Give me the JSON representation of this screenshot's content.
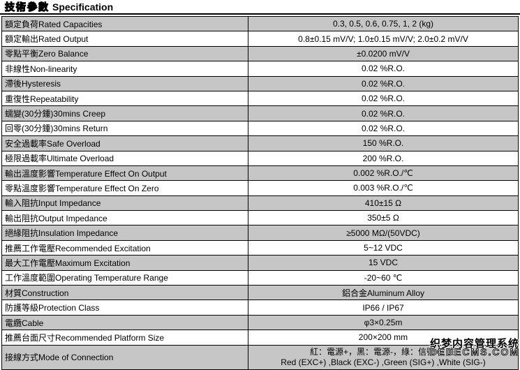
{
  "page": {
    "title_cn": "技術參數",
    "title_en": "Specification"
  },
  "table": {
    "rows": [
      {
        "label": "額定負荷Rated Capacities",
        "value": "0.3, 0.5, 0.6, 0.75, 1, 2 (kg)"
      },
      {
        "label": "額定輸出Rated Output",
        "value": "0.8±0.15 mV/V; 1.0±0.15 mV/V; 2.0±0.2 mV/V"
      },
      {
        "label": "零點平衡Zero Balance",
        "value": "±0.0200 mV/V"
      },
      {
        "label": "非線性Non-linearity",
        "value": "0.02 %R.O."
      },
      {
        "label": "滯後Hysteresis",
        "value": "0.02 %R.O."
      },
      {
        "label": "重復性Repeatability",
        "value": "0.02 %R.O."
      },
      {
        "label": "蠕變(30分鍾)30mins Creep",
        "value": "0.02 %R.O."
      },
      {
        "label": "回零(30分鍾)30mins Return",
        "value": "0.02 %R.O."
      },
      {
        "label": "安全過載率Safe Overload",
        "value": "150 %R.O."
      },
      {
        "label": "極限過載率Ultimate Overload",
        "value": "200 %R.O."
      },
      {
        "label": "輸出溫度影響Temperature Effect On Output",
        "value": "0.002 %R.O./℃"
      },
      {
        "label": "零點溫度影響Temperature Effect On Zero",
        "value": "0.003 %R.O./℃"
      },
      {
        "label": "輸入阻抗Input Impedance",
        "value": "410±15 Ω"
      },
      {
        "label": "輸出阻抗Output Impedance",
        "value": "350±5 Ω"
      },
      {
        "label": "絕緣阻抗Insulation Impedance",
        "value": "≥5000 MΩ/(50VDC)"
      },
      {
        "label": "推薦工作電壓Recommended Excitation",
        "value": "5~12 VDC"
      },
      {
        "label": "最大工作電壓Maximum Excitation",
        "value": "15 VDC"
      },
      {
        "label": "工作溫度範圍Operating Temperature Range",
        "value": "-20~60 ℃"
      },
      {
        "label": "材質Construction",
        "value": "鋁合金Aluminum Alloy"
      },
      {
        "label": "防護等級Protection Class",
        "value": "IP66 / IP67"
      },
      {
        "label": "電纜Cable",
        "value": "φ3×0.25m"
      },
      {
        "label": "推薦台面尺寸Recommended Platform Size",
        "value": "200×200 mm"
      },
      {
        "label": "接線方式Mode of Connection",
        "value": "紅：電源+，黑：電源-，綠：信號+，白",
        "value2": "Red (EXC+) ,Black (EXC-) ,Green (SIG+) ,White (SIG-)"
      }
    ]
  },
  "watermark": {
    "line1": "织梦内容管理系统",
    "line2": "DEDECMS.COM"
  },
  "colors": {
    "row_shaded": "#c6c6c6",
    "row_plain": "#ffffff",
    "border": "#000000"
  }
}
